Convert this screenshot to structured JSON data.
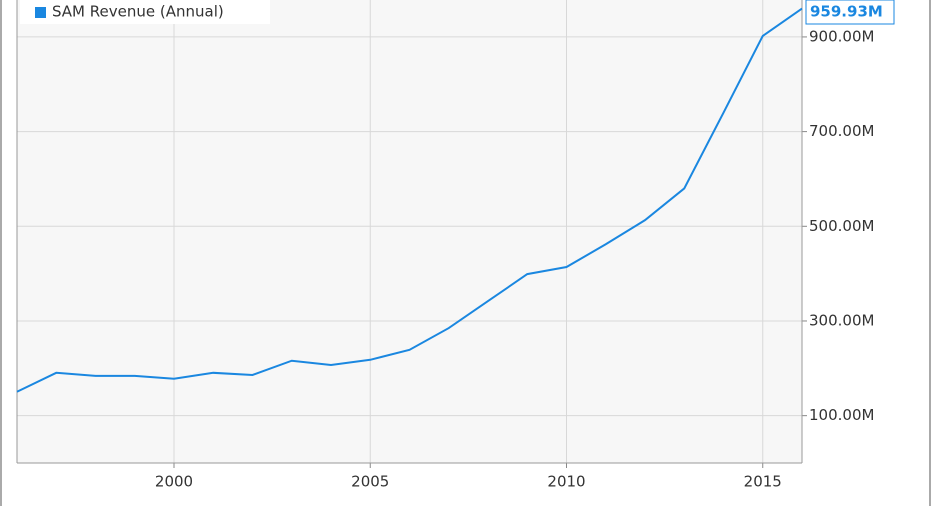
{
  "chart_data": {
    "type": "line",
    "x": [
      1996,
      1997,
      1998,
      1999,
      2000,
      2001,
      2002,
      2003,
      2004,
      2005,
      2006,
      2007,
      2008,
      2009,
      2010,
      2011,
      2012,
      2013,
      2014,
      2015,
      2016
    ],
    "series": [
      {
        "name": "SAM Revenue (Annual)",
        "color": "#1a87e0",
        "values": [
          150.5,
          190.5,
          184,
          184,
          178,
          190.5,
          186,
          216,
          207,
          218,
          239,
          285,
          342,
          399,
          414,
          462,
          513,
          580,
          740,
          902,
          959.93
        ],
        "value_labels": [
          null,
          null,
          null,
          null,
          null,
          null,
          null,
          null,
          null,
          null,
          null,
          null,
          null,
          null,
          null,
          null,
          null,
          null,
          null,
          null,
          "959.93M"
        ]
      }
    ],
    "xlim": [
      1996,
      2016
    ],
    "xticks": [
      2000,
      2005,
      2010,
      2015
    ],
    "ylim": [
      0,
      978
    ],
    "yticks": [
      {
        "value": 100,
        "label": "100.00M"
      },
      {
        "value": 300,
        "label": "300.00M"
      },
      {
        "value": 500,
        "label": "500.00M"
      },
      {
        "value": 700,
        "label": "700.00M"
      },
      {
        "value": 900,
        "label": "900.00M"
      }
    ],
    "grid": true,
    "legend": "top-left"
  }
}
